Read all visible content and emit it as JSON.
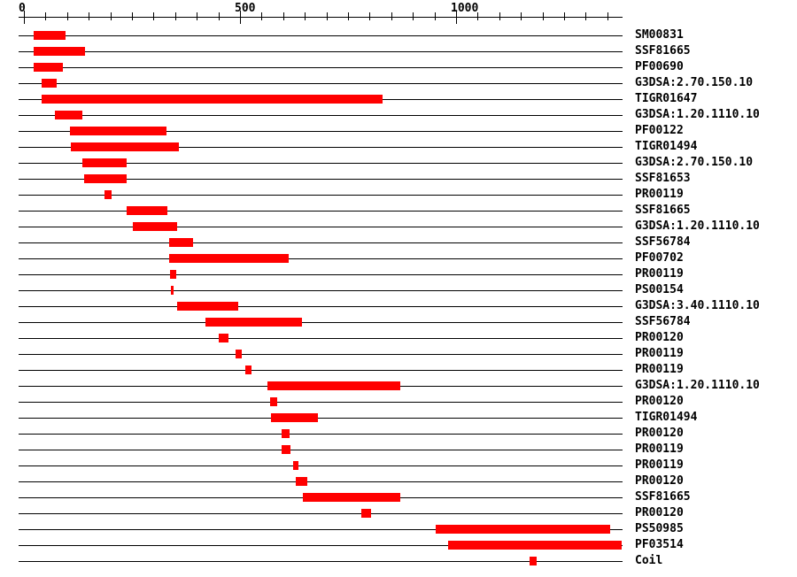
{
  "figure": {
    "background_color": "#ffffff",
    "line_color": "#000000",
    "label_color": "#000000"
  },
  "chart_data": {
    "type": "bar",
    "subtype": "protein-feature-track",
    "title": "",
    "xlabel": "",
    "ylabel": "",
    "bar_color": "#ff0000",
    "axis": {
      "min": 0,
      "max": 1383,
      "minor_tick_interval": 50,
      "last_minor_tick": 1350,
      "major_ticks": [
        {
          "value": 0,
          "label": "0"
        },
        {
          "value": 500,
          "label": "500"
        },
        {
          "value": 1000,
          "label": "1000"
        }
      ]
    },
    "rows": [
      {
        "label": "SM00831",
        "start": 23,
        "end": 96
      },
      {
        "label": "SSF81665",
        "start": 23,
        "end": 141
      },
      {
        "label": "PF00690",
        "start": 23,
        "end": 90
      },
      {
        "label": "G3DSA:2.70.150.10",
        "start": 41,
        "end": 76
      },
      {
        "label": "TIGR01647",
        "start": 41,
        "end": 830
      },
      {
        "label": "G3DSA:1.20.1110.10",
        "start": 72,
        "end": 135
      },
      {
        "label": "PF00122",
        "start": 107,
        "end": 330
      },
      {
        "label": "TIGR01494",
        "start": 109,
        "end": 359
      },
      {
        "label": "G3DSA:2.70.150.10",
        "start": 135,
        "end": 238
      },
      {
        "label": "SSF81653",
        "start": 139,
        "end": 238
      },
      {
        "label": "PR00119",
        "start": 186,
        "end": 203
      },
      {
        "label": "SSF81665",
        "start": 238,
        "end": 332
      },
      {
        "label": "G3DSA:1.20.1110.10",
        "start": 252,
        "end": 354
      },
      {
        "label": "SSF56784",
        "start": 336,
        "end": 391
      },
      {
        "label": "PF00702",
        "start": 336,
        "end": 613
      },
      {
        "label": "PR00119",
        "start": 338,
        "end": 352
      },
      {
        "label": "PS00154",
        "start": 340,
        "end": 346
      },
      {
        "label": "G3DSA:3.40.1110.10",
        "start": 354,
        "end": 496
      },
      {
        "label": "SSF56784",
        "start": 420,
        "end": 643
      },
      {
        "label": "PR00120",
        "start": 451,
        "end": 473
      },
      {
        "label": "PR00119",
        "start": 490,
        "end": 504
      },
      {
        "label": "PR00119",
        "start": 512,
        "end": 527
      },
      {
        "label": "G3DSA:1.20.1110.10",
        "start": 564,
        "end": 871
      },
      {
        "label": "PR00120",
        "start": 570,
        "end": 586
      },
      {
        "label": "TIGR01494",
        "start": 572,
        "end": 680
      },
      {
        "label": "PR00120",
        "start": 596,
        "end": 615
      },
      {
        "label": "PR00119",
        "start": 596,
        "end": 617
      },
      {
        "label": "PR00119",
        "start": 623,
        "end": 635
      },
      {
        "label": "PR00120",
        "start": 629,
        "end": 656
      },
      {
        "label": "SSF81665",
        "start": 646,
        "end": 871
      },
      {
        "label": "PR00120",
        "start": 781,
        "end": 803
      },
      {
        "label": "PS50985",
        "start": 953,
        "end": 1357
      },
      {
        "label": "PF03514",
        "start": 982,
        "end": 1383
      },
      {
        "label": "Coil",
        "start": 1170,
        "end": 1187
      }
    ]
  }
}
